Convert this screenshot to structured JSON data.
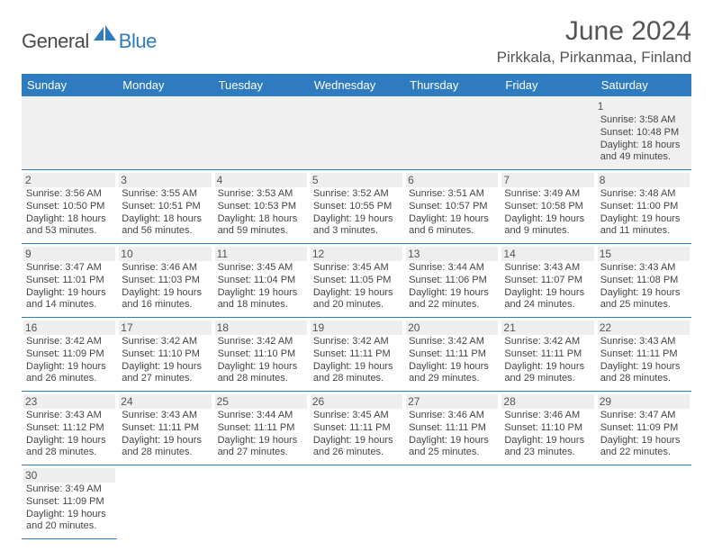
{
  "brand": {
    "part1": "General",
    "part2": "Blue"
  },
  "title": "June 2024",
  "location": "Pirkkala, Pirkanmaa, Finland",
  "colors": {
    "header_bg": "#2e7bbf",
    "header_text": "#ffffff",
    "border": "#2e7bbf",
    "muted_bg": "#f0f0f0",
    "text": "#444444",
    "title_text": "#555555"
  },
  "weekdays": [
    "Sunday",
    "Monday",
    "Tuesday",
    "Wednesday",
    "Thursday",
    "Friday",
    "Saturday"
  ],
  "weeks": [
    [
      null,
      null,
      null,
      null,
      null,
      null,
      {
        "n": "1",
        "sr": "Sunrise: 3:58 AM",
        "ss": "Sunset: 10:48 PM",
        "d1": "Daylight: 18 hours",
        "d2": "and 49 minutes."
      }
    ],
    [
      {
        "n": "2",
        "sr": "Sunrise: 3:56 AM",
        "ss": "Sunset: 10:50 PM",
        "d1": "Daylight: 18 hours",
        "d2": "and 53 minutes."
      },
      {
        "n": "3",
        "sr": "Sunrise: 3:55 AM",
        "ss": "Sunset: 10:51 PM",
        "d1": "Daylight: 18 hours",
        "d2": "and 56 minutes."
      },
      {
        "n": "4",
        "sr": "Sunrise: 3:53 AM",
        "ss": "Sunset: 10:53 PM",
        "d1": "Daylight: 18 hours",
        "d2": "and 59 minutes."
      },
      {
        "n": "5",
        "sr": "Sunrise: 3:52 AM",
        "ss": "Sunset: 10:55 PM",
        "d1": "Daylight: 19 hours",
        "d2": "and 3 minutes."
      },
      {
        "n": "6",
        "sr": "Sunrise: 3:51 AM",
        "ss": "Sunset: 10:57 PM",
        "d1": "Daylight: 19 hours",
        "d2": "and 6 minutes."
      },
      {
        "n": "7",
        "sr": "Sunrise: 3:49 AM",
        "ss": "Sunset: 10:58 PM",
        "d1": "Daylight: 19 hours",
        "d2": "and 9 minutes."
      },
      {
        "n": "8",
        "sr": "Sunrise: 3:48 AM",
        "ss": "Sunset: 11:00 PM",
        "d1": "Daylight: 19 hours",
        "d2": "and 11 minutes."
      }
    ],
    [
      {
        "n": "9",
        "sr": "Sunrise: 3:47 AM",
        "ss": "Sunset: 11:01 PM",
        "d1": "Daylight: 19 hours",
        "d2": "and 14 minutes."
      },
      {
        "n": "10",
        "sr": "Sunrise: 3:46 AM",
        "ss": "Sunset: 11:03 PM",
        "d1": "Daylight: 19 hours",
        "d2": "and 16 minutes."
      },
      {
        "n": "11",
        "sr": "Sunrise: 3:45 AM",
        "ss": "Sunset: 11:04 PM",
        "d1": "Daylight: 19 hours",
        "d2": "and 18 minutes."
      },
      {
        "n": "12",
        "sr": "Sunrise: 3:45 AM",
        "ss": "Sunset: 11:05 PM",
        "d1": "Daylight: 19 hours",
        "d2": "and 20 minutes."
      },
      {
        "n": "13",
        "sr": "Sunrise: 3:44 AM",
        "ss": "Sunset: 11:06 PM",
        "d1": "Daylight: 19 hours",
        "d2": "and 22 minutes."
      },
      {
        "n": "14",
        "sr": "Sunrise: 3:43 AM",
        "ss": "Sunset: 11:07 PM",
        "d1": "Daylight: 19 hours",
        "d2": "and 24 minutes."
      },
      {
        "n": "15",
        "sr": "Sunrise: 3:43 AM",
        "ss": "Sunset: 11:08 PM",
        "d1": "Daylight: 19 hours",
        "d2": "and 25 minutes."
      }
    ],
    [
      {
        "n": "16",
        "sr": "Sunrise: 3:42 AM",
        "ss": "Sunset: 11:09 PM",
        "d1": "Daylight: 19 hours",
        "d2": "and 26 minutes."
      },
      {
        "n": "17",
        "sr": "Sunrise: 3:42 AM",
        "ss": "Sunset: 11:10 PM",
        "d1": "Daylight: 19 hours",
        "d2": "and 27 minutes."
      },
      {
        "n": "18",
        "sr": "Sunrise: 3:42 AM",
        "ss": "Sunset: 11:10 PM",
        "d1": "Daylight: 19 hours",
        "d2": "and 28 minutes."
      },
      {
        "n": "19",
        "sr": "Sunrise: 3:42 AM",
        "ss": "Sunset: 11:11 PM",
        "d1": "Daylight: 19 hours",
        "d2": "and 28 minutes."
      },
      {
        "n": "20",
        "sr": "Sunrise: 3:42 AM",
        "ss": "Sunset: 11:11 PM",
        "d1": "Daylight: 19 hours",
        "d2": "and 29 minutes."
      },
      {
        "n": "21",
        "sr": "Sunrise: 3:42 AM",
        "ss": "Sunset: 11:11 PM",
        "d1": "Daylight: 19 hours",
        "d2": "and 29 minutes."
      },
      {
        "n": "22",
        "sr": "Sunrise: 3:43 AM",
        "ss": "Sunset: 11:11 PM",
        "d1": "Daylight: 19 hours",
        "d2": "and 28 minutes."
      }
    ],
    [
      {
        "n": "23",
        "sr": "Sunrise: 3:43 AM",
        "ss": "Sunset: 11:12 PM",
        "d1": "Daylight: 19 hours",
        "d2": "and 28 minutes."
      },
      {
        "n": "24",
        "sr": "Sunrise: 3:43 AM",
        "ss": "Sunset: 11:11 PM",
        "d1": "Daylight: 19 hours",
        "d2": "and 28 minutes."
      },
      {
        "n": "25",
        "sr": "Sunrise: 3:44 AM",
        "ss": "Sunset: 11:11 PM",
        "d1": "Daylight: 19 hours",
        "d2": "and 27 minutes."
      },
      {
        "n": "26",
        "sr": "Sunrise: 3:45 AM",
        "ss": "Sunset: 11:11 PM",
        "d1": "Daylight: 19 hours",
        "d2": "and 26 minutes."
      },
      {
        "n": "27",
        "sr": "Sunrise: 3:46 AM",
        "ss": "Sunset: 11:11 PM",
        "d1": "Daylight: 19 hours",
        "d2": "and 25 minutes."
      },
      {
        "n": "28",
        "sr": "Sunrise: 3:46 AM",
        "ss": "Sunset: 11:10 PM",
        "d1": "Daylight: 19 hours",
        "d2": "and 23 minutes."
      },
      {
        "n": "29",
        "sr": "Sunrise: 3:47 AM",
        "ss": "Sunset: 11:09 PM",
        "d1": "Daylight: 19 hours",
        "d2": "and 22 minutes."
      }
    ],
    [
      {
        "n": "30",
        "sr": "Sunrise: 3:49 AM",
        "ss": "Sunset: 11:09 PM",
        "d1": "Daylight: 19 hours",
        "d2": "and 20 minutes."
      },
      null,
      null,
      null,
      null,
      null,
      null
    ]
  ]
}
